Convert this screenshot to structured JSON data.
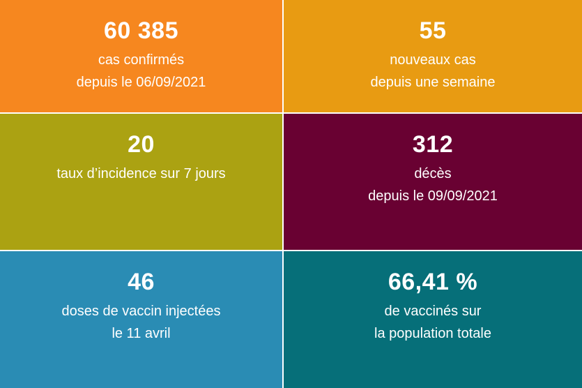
{
  "tiles": [
    {
      "value": "60 385",
      "lines": [
        "cas confirmés",
        "depuis le 06/09/2021"
      ],
      "color": "#F6871F"
    },
    {
      "value": "55",
      "lines": [
        "nouveaux cas",
        "depuis une semaine"
      ],
      "color": "#E89B12"
    },
    {
      "value": "20",
      "lines": [
        "taux d’incidence sur 7 jours"
      ],
      "color": "#ABA212"
    },
    {
      "value": "312",
      "lines": [
        "décès",
        "depuis le 09/09/2021"
      ],
      "color": "#690132"
    },
    {
      "value": "46",
      "lines": [
        "doses de vaccin injectées",
        "le 11 avril"
      ],
      "color": "#2A8CB4"
    },
    {
      "value": "66,41 %",
      "lines": [
        "de vaccinés sur",
        "la population totale"
      ],
      "color": "#066F79"
    }
  ]
}
